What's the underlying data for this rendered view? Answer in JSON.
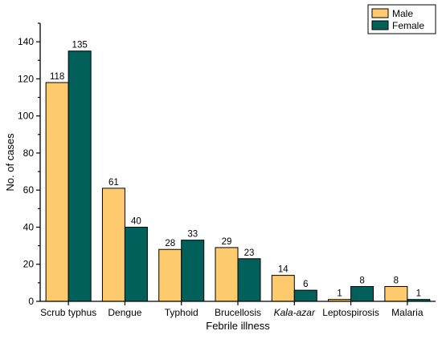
{
  "chart_data": {
    "type": "bar",
    "xlabel": "Febrile illness",
    "ylabel": "No. of cases",
    "ylim": [
      0,
      150
    ],
    "yticks": [
      0,
      20,
      40,
      60,
      80,
      100,
      120,
      140
    ],
    "grid": false,
    "legend_position": "top-right",
    "categories": [
      "Scrub typhus",
      "Dengue",
      "Typhoid",
      "Brucellosis",
      "Kala-azar",
      "Leptospirosis",
      "Malaria"
    ],
    "italic_categories": [
      "Kala-azar"
    ],
    "series": [
      {
        "name": "Male",
        "color": "#fdca6d",
        "values": [
          118,
          61,
          28,
          29,
          14,
          1,
          8
        ]
      },
      {
        "name": "Female",
        "color": "#02605a",
        "values": [
          135,
          40,
          33,
          23,
          6,
          8,
          1
        ]
      }
    ]
  }
}
